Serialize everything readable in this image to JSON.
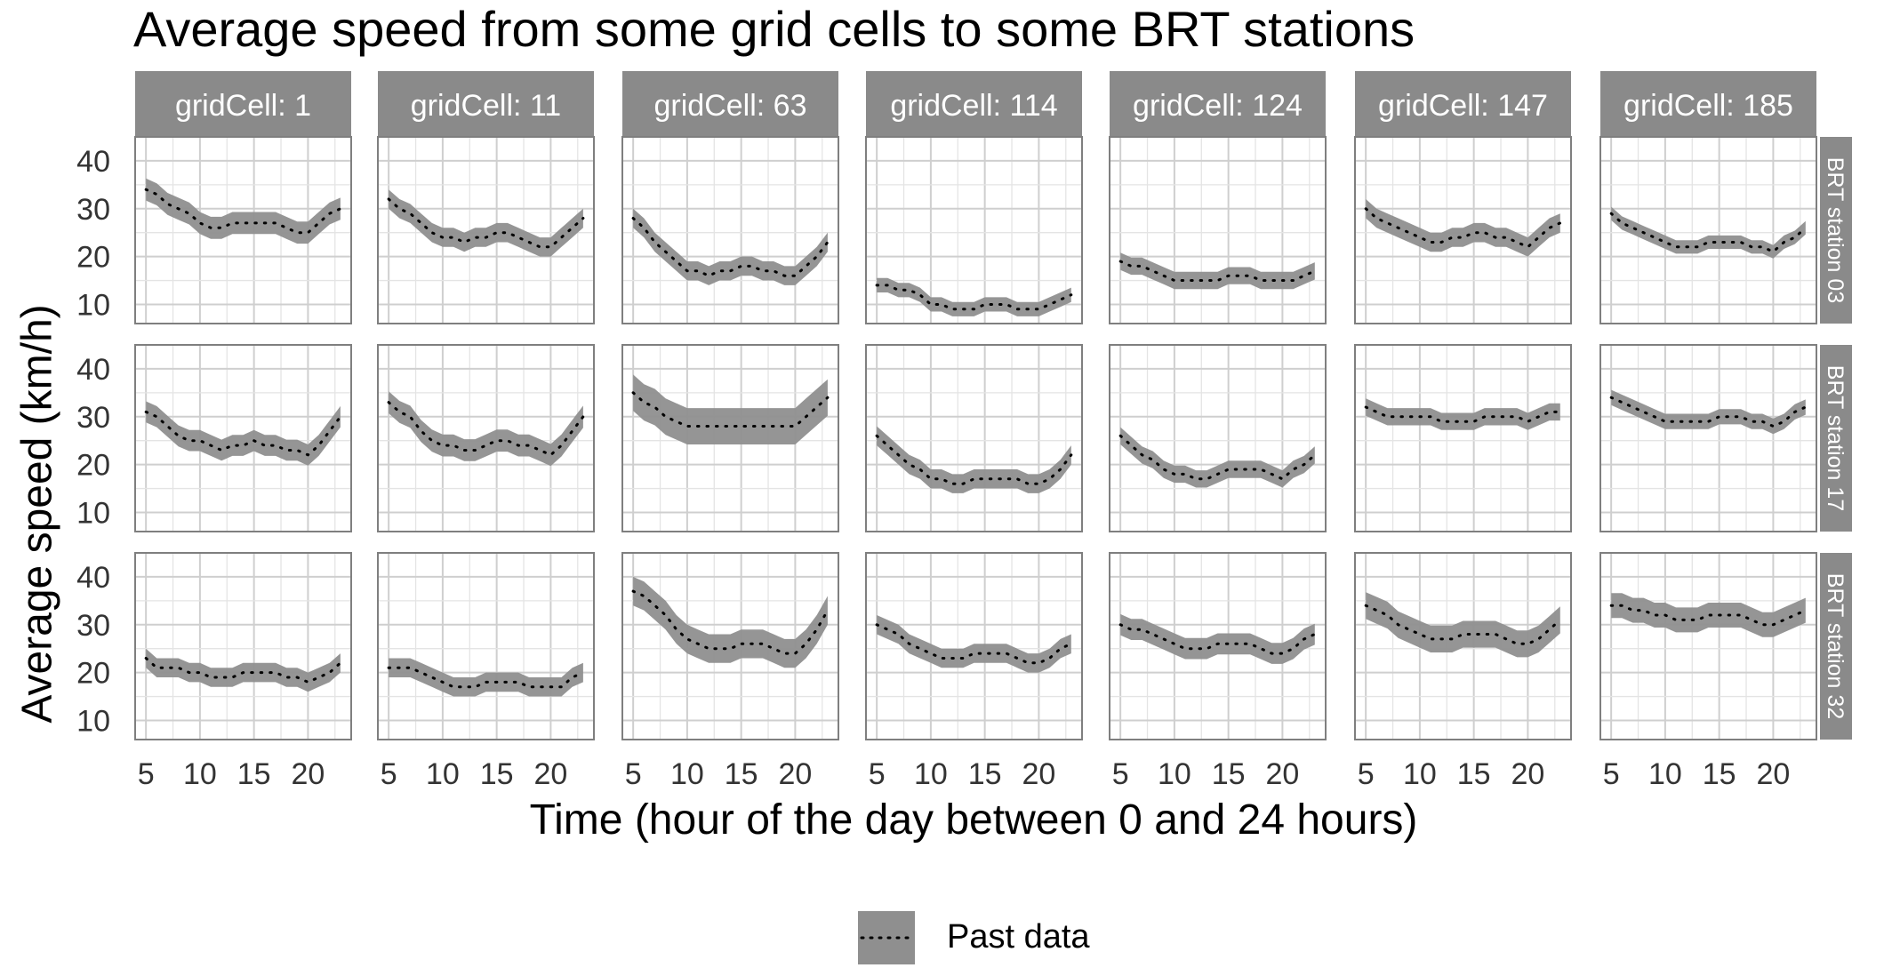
{
  "chart_data": {
    "type": "area",
    "title": "Average speed from some grid cells to some BRT stations",
    "xlabel": "Time (hour of the day between 0 and 24 hours)",
    "ylabel": "Average speed (km/h)",
    "x_ticks": [
      5,
      10,
      15,
      20
    ],
    "y_ticks": [
      10,
      20,
      30,
      40
    ],
    "xlim": [
      4,
      24
    ],
    "ylim": [
      6,
      45
    ],
    "grid": true,
    "legend": {
      "position": "bottom",
      "label": "Past data"
    },
    "column_labels": [
      "gridCell: 1",
      "gridCell: 11",
      "gridCell: 63",
      "gridCell: 114",
      "gridCell: 124",
      "gridCell: 147",
      "gridCell: 185"
    ],
    "row_labels": [
      "BRT station 03",
      "BRT station 17",
      "BRT station 32"
    ],
    "x": [
      5,
      6,
      7,
      8,
      9,
      10,
      11,
      12,
      13,
      14,
      15,
      16,
      17,
      18,
      19,
      20,
      21,
      22,
      23
    ],
    "panels": [
      [
        {
          "mean": [
            34,
            33,
            31,
            30,
            29,
            27,
            26,
            26,
            27,
            27,
            27,
            27,
            27,
            26,
            25,
            25,
            27,
            29,
            30
          ],
          "band": 2.3
        },
        {
          "mean": [
            32,
            30,
            29,
            27,
            25,
            24,
            24,
            23,
            24,
            24,
            25,
            25,
            24,
            23,
            22,
            22,
            24,
            26,
            28
          ],
          "band": 2.0
        },
        {
          "mean": [
            28,
            26,
            23,
            21,
            19,
            17,
            17,
            16,
            17,
            17,
            18,
            18,
            17,
            17,
            16,
            16,
            18,
            20,
            23
          ],
          "band": 2.0
        },
        {
          "mean": [
            14,
            14,
            13,
            13,
            12,
            10,
            10,
            9,
            9,
            9,
            10,
            10,
            10,
            9,
            9,
            9,
            10,
            11,
            12
          ],
          "band": 1.5
        },
        {
          "mean": [
            19,
            18,
            18,
            17,
            16,
            15,
            15,
            15,
            15,
            15,
            16,
            16,
            16,
            15,
            15,
            15,
            15,
            16,
            17
          ],
          "band": 1.8
        },
        {
          "mean": [
            30,
            28,
            27,
            26,
            25,
            24,
            23,
            23,
            24,
            24,
            25,
            25,
            24,
            24,
            23,
            22,
            24,
            26,
            27
          ],
          "band": 2.0
        },
        {
          "mean": [
            29,
            27,
            26,
            25,
            24,
            23,
            22,
            22,
            22,
            23,
            23,
            23,
            23,
            22,
            22,
            21,
            23,
            24,
            26
          ],
          "band": 1.4
        }
      ],
      [
        {
          "mean": [
            31,
            30,
            28,
            26,
            25,
            25,
            24,
            23,
            24,
            24,
            25,
            24,
            24,
            23,
            23,
            22,
            24,
            27,
            30
          ],
          "band": 2.2
        },
        {
          "mean": [
            33,
            31,
            30,
            27,
            25,
            24,
            24,
            23,
            23,
            24,
            25,
            25,
            24,
            24,
            23,
            22,
            24,
            27,
            30
          ],
          "band": 2.3
        },
        {
          "mean": [
            35,
            33,
            32,
            30,
            29,
            28,
            28,
            28,
            28,
            28,
            28,
            28,
            28,
            28,
            28,
            28,
            30,
            32,
            34
          ],
          "band": 3.8
        },
        {
          "mean": [
            26,
            24,
            22,
            20,
            19,
            17,
            17,
            16,
            16,
            17,
            17,
            17,
            17,
            17,
            16,
            16,
            17,
            19,
            22
          ],
          "band": 2.0
        },
        {
          "mean": [
            26,
            24,
            22,
            21,
            19,
            18,
            18,
            17,
            17,
            18,
            19,
            19,
            19,
            19,
            18,
            17,
            19,
            20,
            22
          ],
          "band": 1.8
        },
        {
          "mean": [
            32,
            31,
            30,
            30,
            30,
            30,
            30,
            29,
            29,
            29,
            29,
            30,
            30,
            30,
            30,
            29,
            30,
            31,
            31
          ],
          "band": 1.8
        },
        {
          "mean": [
            34,
            33,
            32,
            31,
            30,
            29,
            29,
            29,
            29,
            29,
            30,
            30,
            30,
            29,
            29,
            28,
            29,
            31,
            32
          ],
          "band": 1.6
        }
      ],
      [
        {
          "mean": [
            23,
            21,
            21,
            21,
            20,
            20,
            19,
            19,
            19,
            20,
            20,
            20,
            20,
            19,
            19,
            18,
            19,
            20,
            22
          ],
          "band": 2.0
        },
        {
          "mean": [
            21,
            21,
            21,
            20,
            19,
            18,
            17,
            17,
            17,
            18,
            18,
            18,
            18,
            17,
            17,
            17,
            17,
            19,
            20
          ],
          "band": 2.0
        },
        {
          "mean": [
            37,
            36,
            34,
            32,
            29,
            27,
            26,
            25,
            25,
            25,
            26,
            26,
            26,
            25,
            24,
            24,
            26,
            29,
            33
          ],
          "band": 3.0
        },
        {
          "mean": [
            30,
            29,
            28,
            26,
            25,
            24,
            23,
            23,
            23,
            24,
            24,
            24,
            24,
            23,
            22,
            22,
            23,
            25,
            26
          ],
          "band": 2.0
        },
        {
          "mean": [
            30,
            29,
            29,
            28,
            27,
            26,
            25,
            25,
            25,
            26,
            26,
            26,
            26,
            25,
            24,
            24,
            25,
            27,
            28
          ],
          "band": 2.2
        },
        {
          "mean": [
            34,
            33,
            32,
            30,
            29,
            28,
            27,
            27,
            27,
            28,
            28,
            28,
            28,
            27,
            26,
            26,
            27,
            29,
            31
          ],
          "band": 2.8
        },
        {
          "mean": [
            34,
            34,
            33,
            33,
            32,
            32,
            31,
            31,
            31,
            32,
            32,
            32,
            32,
            31,
            30,
            30,
            31,
            32,
            33
          ],
          "band": 2.6
        }
      ]
    ]
  }
}
